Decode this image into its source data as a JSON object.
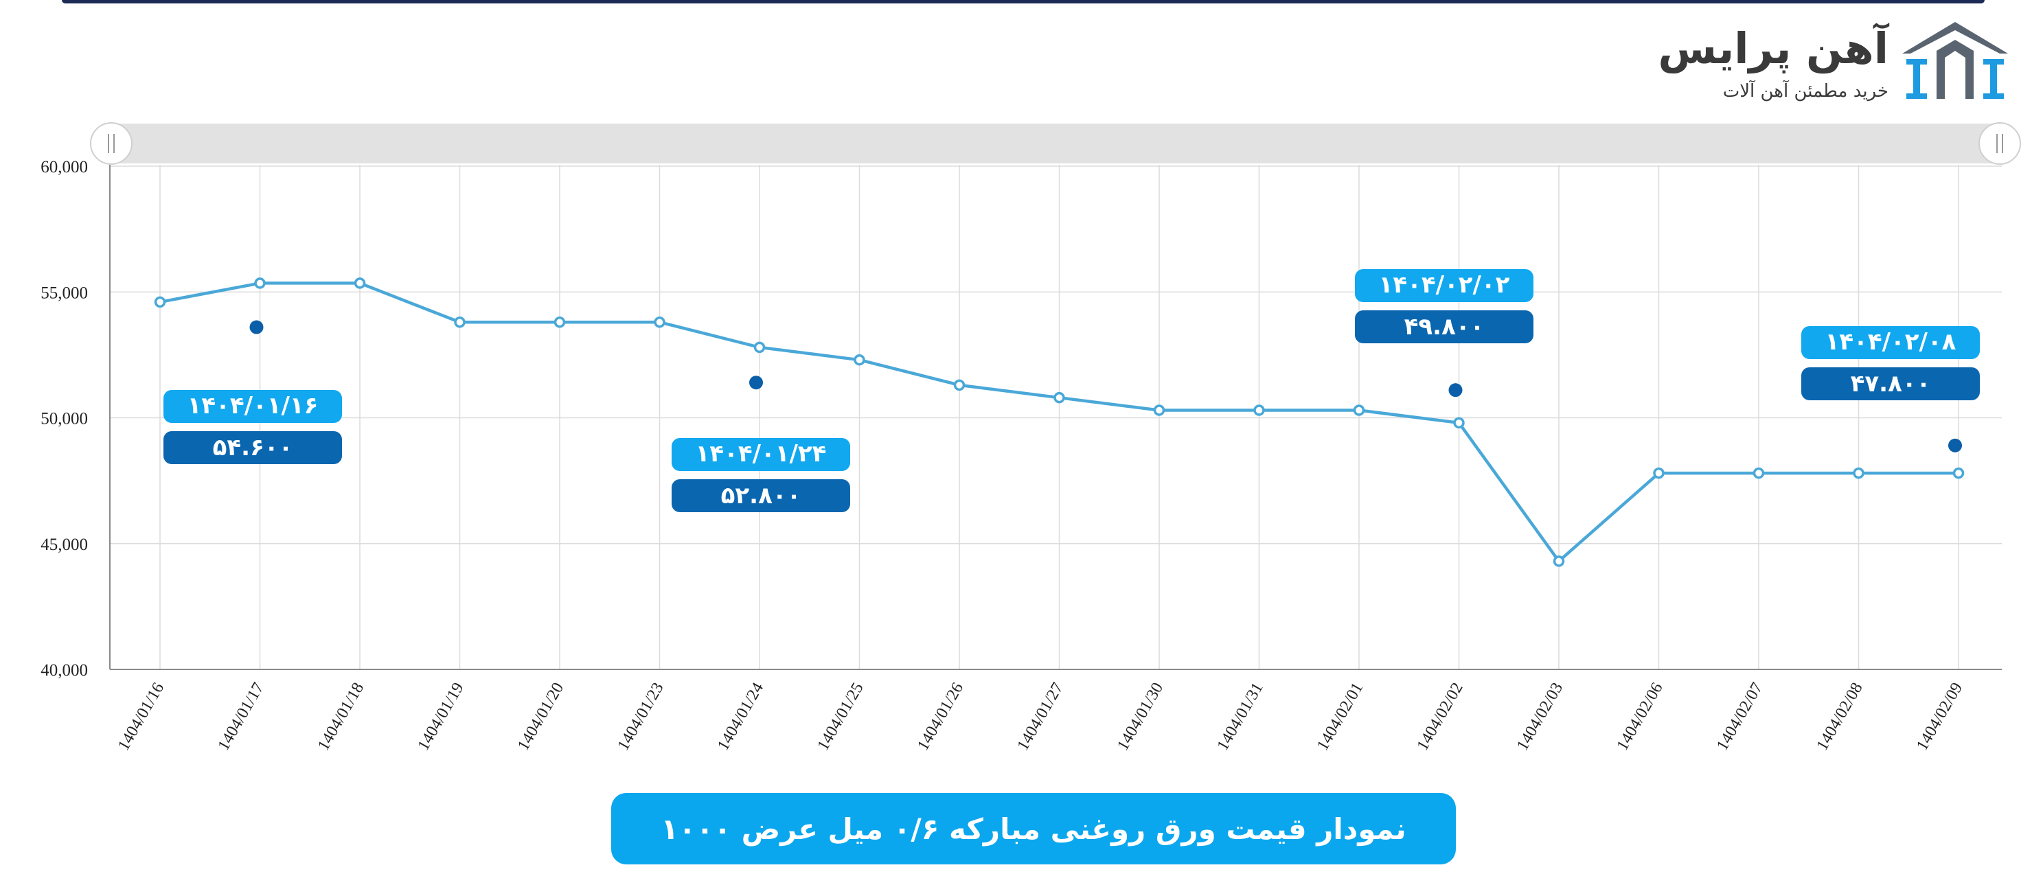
{
  "logo": {
    "name": "آهن پرایس",
    "tagline": "خرید مطمئن آهن آلات"
  },
  "colors": {
    "line": "#4aa8d8",
    "grid": "#dcdcdc",
    "axis": "#8a8a8a",
    "callout_date": "#11a8ef",
    "callout_price": "#0b66b0",
    "marker_dot": "#0b5fa8",
    "banner": "#0aa7ee",
    "logo_blue": "#1e9be0",
    "logo_gray": "#5a6470"
  },
  "title": "نمودار قیمت ورق روغنی مبارکه ۰/۶ میل عرض ۱۰۰۰",
  "chart_data": {
    "type": "line",
    "categories": [
      "1404/01/16",
      "1404/01/17",
      "1404/01/18",
      "1404/01/19",
      "1404/01/20",
      "1404/01/23",
      "1404/01/24",
      "1404/01/25",
      "1404/01/26",
      "1404/01/27",
      "1404/01/30",
      "1404/01/31",
      "1404/02/01",
      "1404/02/02",
      "1404/02/03",
      "1404/02/06",
      "1404/02/07",
      "1404/02/08",
      "1404/02/09"
    ],
    "series": [
      {
        "values": [
          54600,
          55350,
          55350,
          53800,
          53800,
          53800,
          52800,
          52300,
          51300,
          50800,
          50300,
          50300,
          50300,
          49800,
          44300,
          47800,
          47800,
          47800,
          47800
        ]
      }
    ],
    "ylim": [
      40000,
      60000
    ],
    "yticks": [
      40000,
      45000,
      50000,
      55000,
      60000
    ],
    "ytick_labels": [
      "40,000",
      "45,000",
      "50,000",
      "55,000",
      "60,000"
    ],
    "grid": true,
    "legend": "none",
    "annotations": [
      {
        "date": "۱۴۰۴/۰۱/۱۶",
        "price": "۵۴.۶۰۰",
        "category": "1404/01/17",
        "marker_value": 53600
      },
      {
        "date": "۱۴۰۴/۰۱/۲۴",
        "price": "۵۲.۸۰۰",
        "category": "1404/01/24",
        "marker_value": 51400
      },
      {
        "date": "۱۴۰۴/۰۲/۰۲",
        "price": "۴۹.۸۰۰",
        "category": "1404/02/02",
        "marker_value": 51100
      },
      {
        "date": "۱۴۰۴/۰۲/۰۸",
        "price": "۴۷.۸۰۰",
        "category": "1404/02/09",
        "marker_value": 48900
      }
    ]
  }
}
